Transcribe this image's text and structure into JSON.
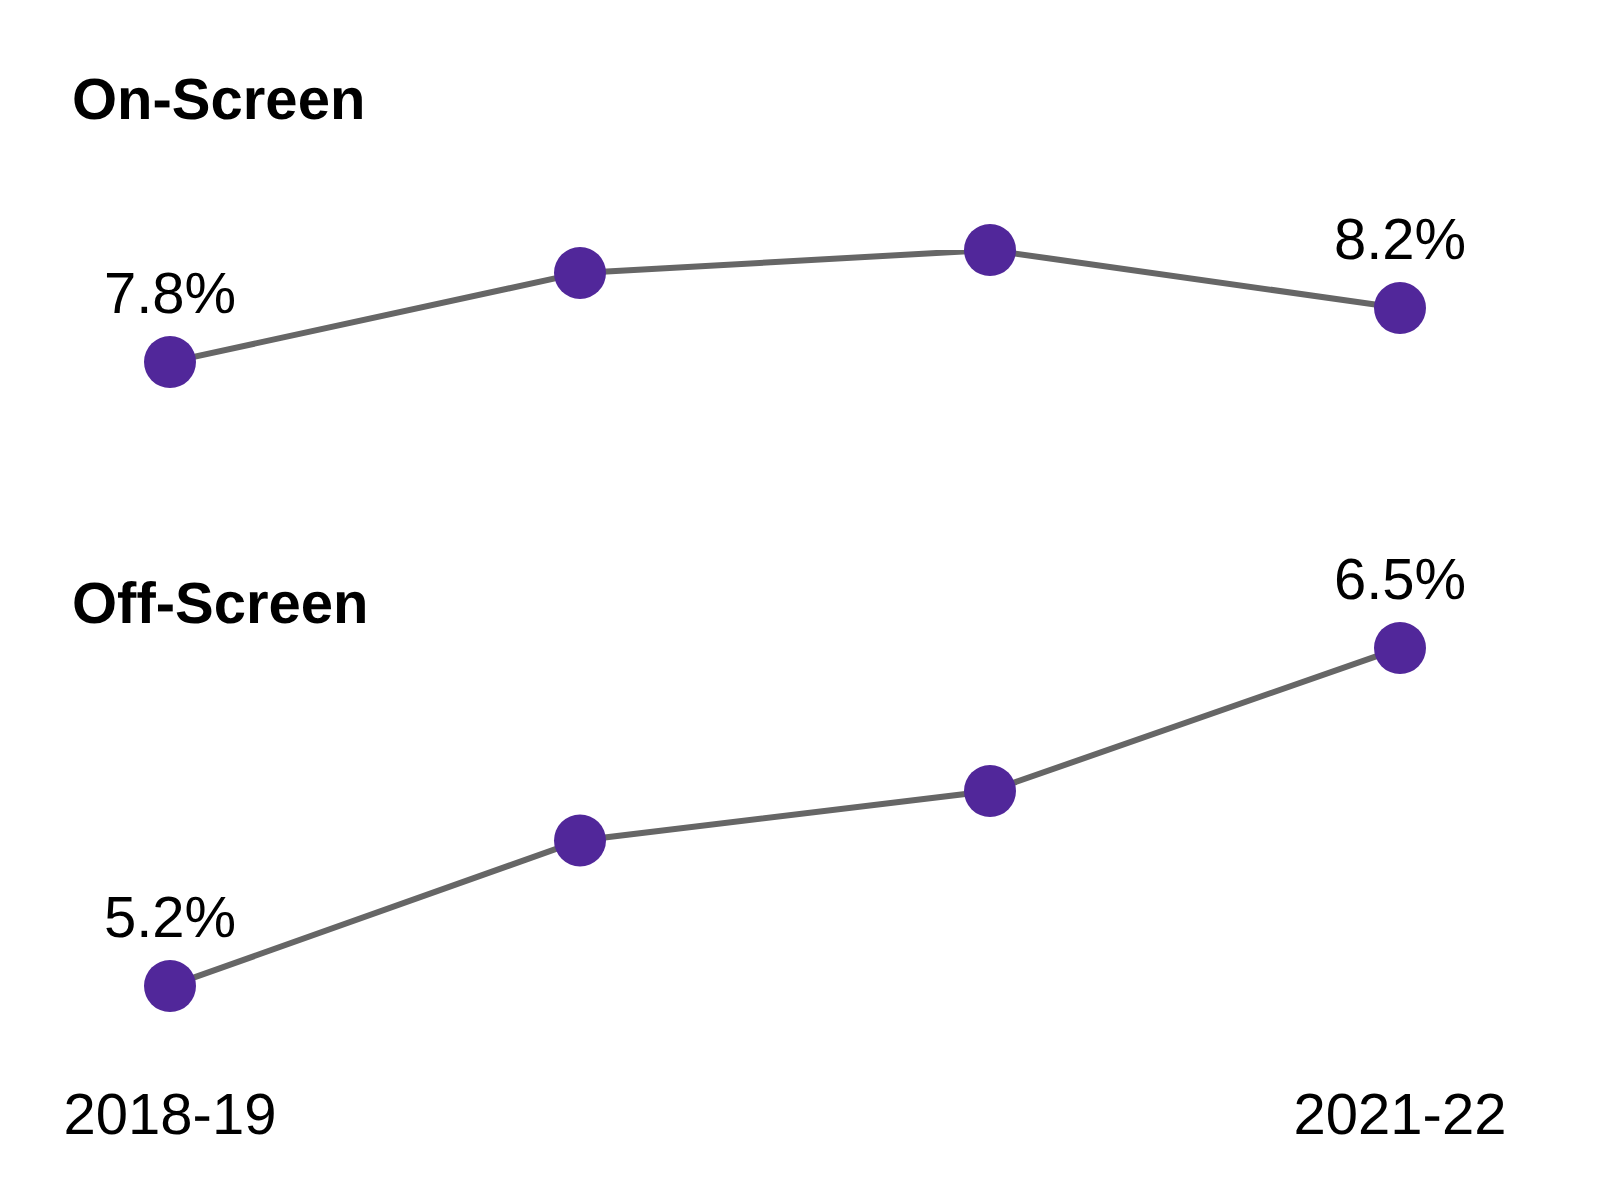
{
  "chart_data": [
    {
      "type": "line",
      "title": "On-Screen",
      "categories": [
        "2018-19",
        null,
        null,
        "2021-22"
      ],
      "values": [
        7.8,
        8.46,
        8.63,
        8.2
      ],
      "value_labels": [
        "7.8%",
        null,
        null,
        "8.2%"
      ],
      "color": "#666666",
      "colors": [
        "#51279a",
        "#51279a",
        "#51279a",
        "#51279a"
      ],
      "marker": "circle",
      "tick_labels": false
    },
    {
      "type": "line",
      "title": "Off-Screen",
      "categories": [
        "2018-19",
        null,
        null,
        "2021-22"
      ],
      "values": [
        5.2,
        5.76,
        5.95,
        6.5
      ],
      "value_labels": [
        "5.2%",
        null,
        null,
        "6.5%"
      ],
      "color": "#666666",
      "colors": [
        "#51279a",
        "#51279a",
        "#51279a",
        "#51279a"
      ],
      "marker": "circle",
      "tick_labels": "x"
    }
  ]
}
